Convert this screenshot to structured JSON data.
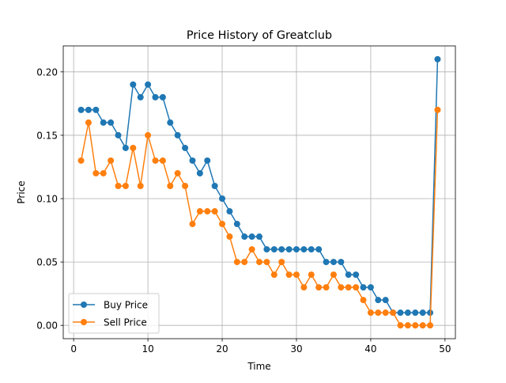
{
  "chart_data": {
    "type": "line",
    "title": "Price History of Greatclub",
    "xlabel": "Time",
    "ylabel": "Price",
    "xlim": [
      -1.4,
      51.4
    ],
    "ylim": [
      -0.0105,
      0.2205
    ],
    "xticks": [
      0,
      10,
      20,
      30,
      40,
      50
    ],
    "yticks": [
      0.0,
      0.05,
      0.1,
      0.15,
      0.2
    ],
    "xtick_labels": [
      "0",
      "10",
      "20",
      "30",
      "40",
      "50"
    ],
    "ytick_labels": [
      "0.00",
      "0.05",
      "0.10",
      "0.15",
      "0.20"
    ],
    "grid": true,
    "legend_position": "lower-left",
    "x": [
      1,
      2,
      3,
      4,
      5,
      6,
      7,
      8,
      9,
      10,
      11,
      12,
      13,
      14,
      15,
      16,
      17,
      18,
      19,
      20,
      21,
      22,
      23,
      24,
      25,
      26,
      27,
      28,
      29,
      30,
      31,
      32,
      33,
      34,
      35,
      36,
      37,
      38,
      39,
      40,
      41,
      42,
      43,
      44,
      45,
      46,
      47,
      48,
      49
    ],
    "series": [
      {
        "name": "Buy Price",
        "color": "#1f77b4",
        "values": [
          0.17,
          0.17,
          0.17,
          0.16,
          0.16,
          0.15,
          0.14,
          0.19,
          0.18,
          0.19,
          0.18,
          0.18,
          0.16,
          0.15,
          0.14,
          0.13,
          0.12,
          0.13,
          0.11,
          0.1,
          0.09,
          0.08,
          0.07,
          0.07,
          0.07,
          0.06,
          0.06,
          0.06,
          0.06,
          0.06,
          0.06,
          0.06,
          0.06,
          0.05,
          0.05,
          0.05,
          0.04,
          0.04,
          0.03,
          0.03,
          0.02,
          0.02,
          0.01,
          0.01,
          0.01,
          0.01,
          0.01,
          0.01,
          0.21
        ]
      },
      {
        "name": "Sell Price",
        "color": "#ff7f0e",
        "values": [
          0.13,
          0.16,
          0.12,
          0.12,
          0.13,
          0.11,
          0.11,
          0.14,
          0.11,
          0.15,
          0.13,
          0.13,
          0.11,
          0.12,
          0.11,
          0.08,
          0.09,
          0.09,
          0.09,
          0.08,
          0.07,
          0.05,
          0.05,
          0.06,
          0.05,
          0.05,
          0.04,
          0.05,
          0.04,
          0.04,
          0.03,
          0.04,
          0.03,
          0.03,
          0.04,
          0.03,
          0.03,
          0.03,
          0.02,
          0.01,
          0.01,
          0.01,
          0.01,
          0.0,
          0.0,
          0.0,
          0.0,
          0.0,
          0.17
        ]
      }
    ]
  }
}
